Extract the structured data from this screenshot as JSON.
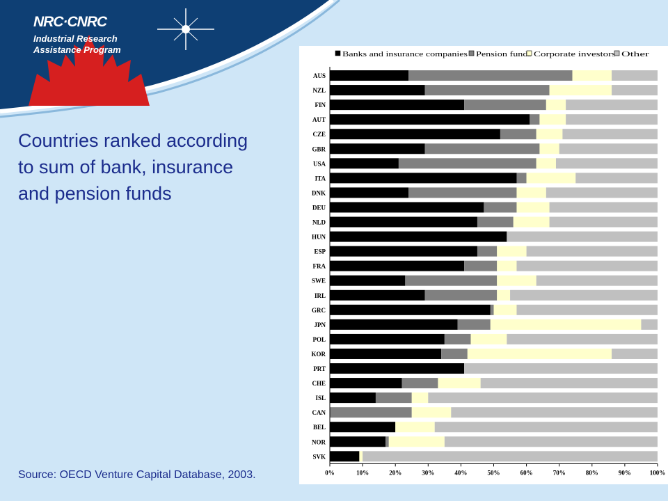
{
  "logo": {
    "org": "NRC·CNRC",
    "program_line1": "Industrial Research",
    "program_line2": "Assistance Program"
  },
  "slide": {
    "title_lines": [
      "Countries ranked according",
      "to sum of bank, insurance",
      "and pension funds"
    ],
    "source": "Source: OECD Venture Capital Database, 2003."
  },
  "colors": {
    "background": "#cfe6f7",
    "banner": "#0e3f74",
    "maple_leaf": "#d61f1f",
    "title_text": "#1b2c8c"
  },
  "chart_data": {
    "type": "bar",
    "orientation": "horizontal",
    "stacked": "percent",
    "categories": [
      "AUS",
      "NZL",
      "FIN",
      "AUT",
      "CZE",
      "GBR",
      "USA",
      "ITA",
      "DNK",
      "DEU",
      "NLD",
      "HUN",
      "ESP",
      "FRA",
      "SWE",
      "IRL",
      "GRC",
      "JPN",
      "POL",
      "KOR",
      "PRT",
      "CHE",
      "ISL",
      "CAN",
      "BEL",
      "NOR",
      "SVK"
    ],
    "series": [
      {
        "name": "Banks and insurance companies",
        "color": "#000000",
        "values": [
          24,
          29,
          41,
          61,
          52,
          29,
          21,
          57,
          24,
          47,
          45,
          54,
          45,
          41,
          23,
          29,
          49,
          39,
          35,
          34,
          41,
          22,
          14,
          0,
          20,
          17,
          9
        ]
      },
      {
        "name": "Pension funds",
        "color": "#808080",
        "values": [
          50,
          38,
          25,
          3,
          11,
          35,
          42,
          3,
          33,
          10,
          11,
          0,
          6,
          10,
          28,
          22,
          1,
          10,
          8,
          8,
          0,
          11,
          11,
          25,
          0,
          1,
          0
        ]
      },
      {
        "name": "Corporate investors",
        "color": "#ffffcc",
        "values": [
          12,
          19,
          6,
          8,
          8,
          6,
          6,
          15,
          9,
          10,
          11,
          0,
          9,
          6,
          12,
          4,
          7,
          46,
          11,
          44,
          0,
          13,
          5,
          12,
          12,
          17,
          1
        ]
      },
      {
        "name": "Other",
        "color": "#c0c0c0",
        "values": [
          14,
          14,
          28,
          28,
          29,
          30,
          31,
          25,
          34,
          33,
          33,
          46,
          40,
          43,
          37,
          45,
          43,
          5,
          46,
          14,
          59,
          54,
          70,
          63,
          68,
          65,
          90
        ]
      }
    ],
    "x_ticks": [
      "0%",
      "10%",
      "20%",
      "30%",
      "40%",
      "50%",
      "60%",
      "70%",
      "80%",
      "90%",
      "100%"
    ],
    "xlim": [
      0,
      100
    ],
    "legend_position": "top",
    "grid": false
  }
}
